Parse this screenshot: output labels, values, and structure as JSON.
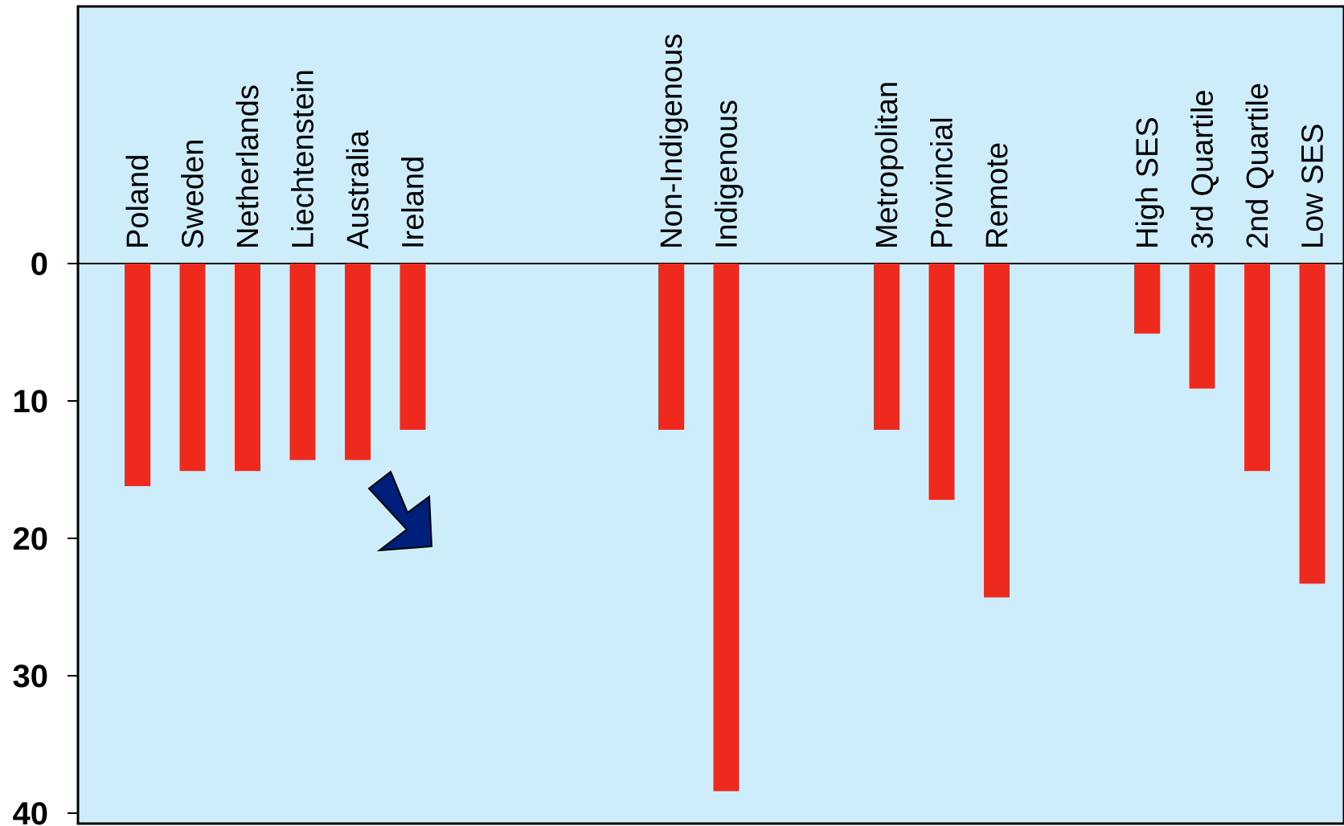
{
  "chart_data": {
    "type": "bar",
    "orientation": "downward",
    "categories": [
      "Poland",
      "Sweden",
      "Netherlands",
      "Liechtenstein",
      "Australia",
      "Ireland",
      "Non-Indigenous",
      "Indigenous",
      "Metropolitan",
      "Provincial",
      "Remote",
      "High SES",
      "3rd Quartile",
      "2nd Quartile",
      "Low SES"
    ],
    "groups": [
      [
        "Poland",
        "Sweden",
        "Netherlands",
        "Liechtenstein",
        "Australia",
        "Ireland"
      ],
      [
        "Non-Indigenous",
        "Indigenous"
      ],
      [
        "Metropolitan",
        "Provincial",
        "Remote"
      ],
      [
        "High SES",
        "3rd Quartile",
        "2nd Quartile",
        "Low SES"
      ]
    ],
    "values": [
      16.2,
      15.1,
      15.1,
      14.3,
      14.3,
      12.1,
      12.1,
      38.4,
      12.1,
      17.2,
      24.3,
      5.1,
      9.1,
      15.1,
      23.3
    ],
    "y_ticks": [
      0,
      10,
      20,
      30,
      40
    ],
    "ylim": [
      0,
      40
    ],
    "grid": false,
    "legend": "none",
    "title": "",
    "xlabel": "",
    "ylabel": "",
    "highlighted_category": "Australia",
    "colors": {
      "plot_background": "#cdedfb",
      "bar": "#ee2a1e",
      "arrow": "#001f7a",
      "axis": "#000000"
    }
  }
}
